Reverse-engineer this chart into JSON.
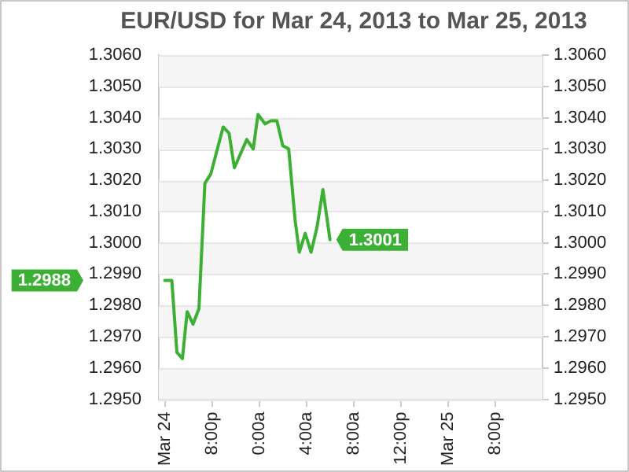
{
  "chart_data": {
    "type": "line",
    "title": "EUR/USD for Mar 24, 2013 to Mar 25, 2013",
    "series": [
      {
        "color": "#3cb034",
        "x": [
          "2013-03-24T16:00",
          "2013-03-24T16:36",
          "2013-03-24T17:02",
          "2013-03-24T17:30",
          "2013-03-24T17:54",
          "2013-03-24T18:24",
          "2013-03-24T18:54",
          "2013-03-24T19:24",
          "2013-03-24T19:54",
          "2013-03-24T20:57",
          "2013-03-24T21:27",
          "2013-03-24T21:54",
          "2013-03-24T22:57",
          "2013-03-24T23:30",
          "2013-03-24T23:54",
          "2013-03-25T00:30",
          "2013-03-25T01:00",
          "2013-03-25T01:30",
          "2013-03-25T02:00",
          "2013-03-25T02:30",
          "2013-03-25T03:03",
          "2013-03-25T03:24",
          "2013-03-25T03:54",
          "2013-03-25T04:24",
          "2013-03-25T04:54",
          "2013-03-25T05:24",
          "2013-03-25T06:00"
        ],
        "values": [
          1.2988,
          1.2988,
          1.2965,
          1.2963,
          1.2978,
          1.2974,
          1.2979,
          1.3019,
          1.3022,
          1.3037,
          1.3035,
          1.3024,
          1.3033,
          1.303,
          1.3041,
          1.3038,
          1.3039,
          1.3039,
          1.3031,
          1.303,
          1.3007,
          1.2997,
          1.3003,
          1.2997,
          1.3005,
          1.3017,
          1.3001
        ]
      }
    ],
    "xlim": [
      "2013-03-24T15:30",
      "2013-03-26T00:00"
    ],
    "xticks": [
      {
        "value": "2013-03-24T16:00",
        "label": "Mar 24"
      },
      {
        "value": "2013-03-24T20:00",
        "label": "8:00p"
      },
      {
        "value": "2013-03-25T00:00",
        "label": "0:00a"
      },
      {
        "value": "2013-03-25T04:00",
        "label": "4:00a"
      },
      {
        "value": "2013-03-25T08:00",
        "label": "8:00a"
      },
      {
        "value": "2013-03-25T12:00",
        "label": "12:00p"
      },
      {
        "value": "2013-03-25T16:00",
        "label": "Mar 25"
      },
      {
        "value": "2013-03-25T20:00",
        "label": "8:00p"
      }
    ],
    "ylim": [
      1.295,
      1.306
    ],
    "yticks": [
      {
        "value": 1.295,
        "label": "1.2950"
      },
      {
        "value": 1.296,
        "label": "1.2960"
      },
      {
        "value": 1.297,
        "label": "1.2970"
      },
      {
        "value": 1.298,
        "label": "1.2980"
      },
      {
        "value": 1.299,
        "label": "1.2990"
      },
      {
        "value": 1.3,
        "label": "1.3000"
      },
      {
        "value": 1.301,
        "label": "1.3010"
      },
      {
        "value": 1.302,
        "label": "1.3020"
      },
      {
        "value": 1.303,
        "label": "1.3030"
      },
      {
        "value": 1.304,
        "label": "1.3040"
      },
      {
        "value": 1.305,
        "label": "1.3050"
      },
      {
        "value": 1.306,
        "label": "1.3060"
      }
    ],
    "y2lim": [
      1.295,
      1.306
    ],
    "y2ticks": [
      {
        "value": 1.295,
        "label": "1.2950"
      },
      {
        "value": 1.296,
        "label": "1.2960"
      },
      {
        "value": 1.297,
        "label": "1.2970"
      },
      {
        "value": 1.298,
        "label": "1.2980"
      },
      {
        "value": 1.299,
        "label": "1.2990"
      },
      {
        "value": 1.3,
        "label": "1.3000"
      },
      {
        "value": 1.301,
        "label": "1.3010"
      },
      {
        "value": 1.302,
        "label": "1.3020"
      },
      {
        "value": 1.303,
        "label": "1.3030"
      },
      {
        "value": 1.304,
        "label": "1.3040"
      },
      {
        "value": 1.305,
        "label": "1.3050"
      },
      {
        "value": 1.306,
        "label": "1.3060"
      }
    ],
    "grid": "y",
    "marker": "none",
    "line_style": "solid",
    "legend": false,
    "annotations": [
      "1.2988",
      "1.3001"
    ]
  }
}
